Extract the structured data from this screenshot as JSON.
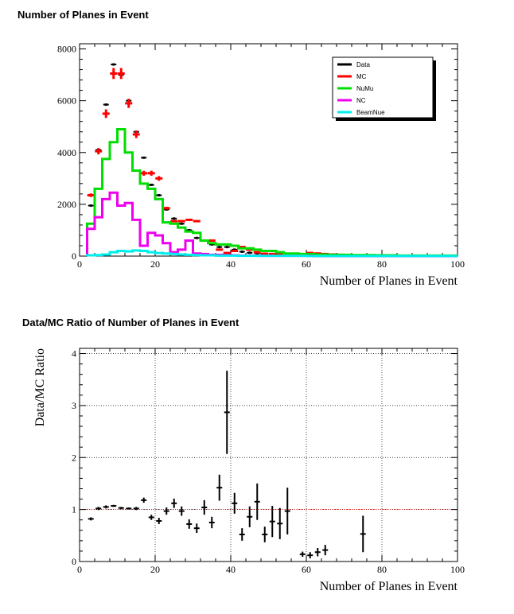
{
  "chart_data": [
    {
      "type": "line",
      "title": "Number of Planes in Event",
      "xlabel": "Number of Planes in Event",
      "ylabel": "",
      "xlim": [
        0,
        100
      ],
      "ylim": [
        0,
        8200
      ],
      "xticks": [
        0,
        20,
        40,
        60,
        80,
        100
      ],
      "yticks": [
        0,
        2000,
        4000,
        6000,
        8000
      ],
      "grid": false,
      "legend_position": "top-right",
      "series": [
        {
          "name": "Data",
          "color": "#000000",
          "style": "points",
          "x": [
            3,
            5,
            7,
            9,
            11,
            13,
            15,
            17,
            19,
            21,
            23,
            25,
            27,
            29,
            31,
            33,
            35,
            37,
            39,
            41,
            43,
            45,
            47,
            49,
            51,
            53,
            55,
            57,
            59,
            61,
            63,
            65,
            67,
            69,
            71,
            73,
            75,
            77,
            79,
            81,
            83,
            85,
            87,
            89,
            91,
            93,
            95,
            97,
            99
          ],
          "y": [
            1950,
            4100,
            5850,
            7400,
            7000,
            6000,
            4800,
            3800,
            2750,
            2350,
            1800,
            1450,
            1250,
            1000,
            700,
            600,
            450,
            350,
            350,
            250,
            170,
            130,
            110,
            90,
            80,
            70,
            60,
            50,
            40,
            30,
            20,
            20,
            15,
            10,
            10,
            5,
            5,
            3,
            3,
            2,
            2,
            2,
            1,
            1,
            1,
            1,
            1,
            1,
            1
          ]
        },
        {
          "name": "MC",
          "color": "#ff0000",
          "style": "points",
          "x": [
            3,
            5,
            7,
            9,
            11,
            13,
            15,
            17,
            19,
            21,
            23,
            25,
            27,
            29,
            31,
            33,
            35,
            37,
            39,
            41,
            43,
            45,
            47,
            49,
            51,
            53,
            55,
            57,
            59,
            61,
            63,
            65,
            67,
            69,
            71,
            73,
            75,
            77,
            79,
            81,
            83,
            85,
            87,
            89,
            91,
            93,
            95,
            97,
            99
          ],
          "y": [
            2350,
            4050,
            5500,
            7050,
            7050,
            5900,
            4700,
            3200,
            3200,
            3000,
            1850,
            1350,
            1350,
            1400,
            1350,
            600,
            600,
            250,
            120,
            200,
            350,
            250,
            150,
            90,
            80,
            80,
            80,
            60,
            50,
            120,
            100,
            80,
            60,
            50,
            40,
            30,
            30,
            20,
            20,
            20,
            10,
            10,
            10,
            10,
            10,
            10,
            5,
            5,
            5
          ]
        },
        {
          "name": "NuMu",
          "color": "#00dd00",
          "style": "step",
          "x": [
            2,
            4,
            6,
            8,
            10,
            12,
            14,
            16,
            18,
            20,
            22,
            24,
            26,
            28,
            30,
            32,
            34,
            36,
            38,
            40,
            42,
            44,
            46,
            48,
            50,
            52,
            54,
            56,
            58,
            60,
            62,
            64,
            66,
            68,
            70,
            72,
            74,
            76,
            78,
            80,
            82,
            84,
            86,
            88,
            90,
            92,
            94,
            96,
            98
          ],
          "y": [
            1250,
            2600,
            3750,
            4400,
            4900,
            4000,
            3300,
            2800,
            2600,
            2200,
            1300,
            1250,
            1100,
            950,
            900,
            600,
            500,
            450,
            450,
            400,
            300,
            300,
            250,
            200,
            200,
            150,
            100,
            100,
            80,
            80,
            60,
            60,
            50,
            50,
            50,
            40,
            40,
            40,
            30,
            30,
            30,
            20,
            20,
            20,
            20,
            20,
            20,
            20,
            20
          ]
        },
        {
          "name": "NC",
          "color": "#ee00ee",
          "style": "step",
          "x": [
            2,
            4,
            6,
            8,
            10,
            12,
            14,
            16,
            18,
            20,
            22,
            24,
            26,
            28,
            30,
            32,
            34,
            36,
            38,
            40,
            42,
            44,
            46,
            48,
            50,
            52,
            54,
            56,
            58,
            60,
            62,
            64,
            66,
            68,
            70,
            72,
            74,
            76,
            78,
            80,
            82,
            84,
            86,
            88,
            90,
            92,
            94,
            96,
            98
          ],
          "y": [
            1050,
            1500,
            2200,
            2450,
            1950,
            2050,
            1400,
            400,
            900,
            800,
            500,
            150,
            250,
            600,
            100,
            80,
            50,
            50,
            40,
            30,
            20,
            20,
            20,
            10,
            10,
            10,
            10,
            10,
            10,
            10,
            0,
            0,
            0,
            0,
            0,
            0,
            0,
            0,
            0,
            0,
            0,
            0,
            0,
            0,
            0,
            0,
            0,
            0,
            0
          ]
        },
        {
          "name": "BeamNue",
          "color": "#00eeee",
          "style": "step",
          "x": [
            2,
            4,
            6,
            8,
            10,
            12,
            14,
            16,
            18,
            20,
            22,
            24,
            26,
            28,
            30,
            32,
            34,
            36,
            38,
            40,
            42,
            44,
            46,
            48,
            50,
            52,
            54,
            56,
            58,
            60,
            62,
            64,
            66,
            68,
            70,
            72,
            74,
            76,
            78,
            80,
            82,
            84,
            86,
            88,
            90,
            92,
            94,
            96,
            98
          ],
          "y": [
            30,
            40,
            60,
            150,
            200,
            180,
            220,
            200,
            150,
            120,
            100,
            80,
            60,
            50,
            40,
            30,
            30,
            20,
            20,
            20,
            10,
            10,
            10,
            10,
            10,
            10,
            10,
            10,
            10,
            5,
            5,
            5,
            5,
            5,
            5,
            5,
            5,
            5,
            5,
            5,
            5,
            5,
            5,
            5,
            5,
            5,
            5,
            5,
            5
          ]
        }
      ]
    },
    {
      "type": "scatter",
      "title": "Data/MC Ratio of Number of Planes in Event",
      "xlabel": "Number of Planes in Event",
      "ylabel": "Data/MC Ratio",
      "xlim": [
        0,
        100
      ],
      "ylim": [
        0,
        4.1
      ],
      "xticks": [
        0,
        20,
        40,
        60,
        80,
        100
      ],
      "yticks": [
        0,
        1,
        2,
        3,
        4
      ],
      "grid": true,
      "reference_line": {
        "y": 1,
        "color": "#ff0000"
      },
      "series": [
        {
          "name": "",
          "color": "#000000",
          "x": [
            3,
            5,
            7,
            9,
            11,
            13,
            15,
            17,
            19,
            21,
            23,
            25,
            27,
            29,
            31,
            33,
            35,
            37,
            39,
            41,
            43,
            45,
            47,
            49,
            51,
            53,
            55,
            59,
            61,
            63,
            65,
            75
          ],
          "y": [
            0.82,
            1.02,
            1.05,
            1.07,
            1.03,
            1.02,
            1.02,
            1.18,
            0.85,
            0.78,
            0.97,
            1.12,
            0.97,
            0.72,
            0.64,
            1.04,
            0.75,
            1.42,
            2.87,
            1.12,
            0.52,
            0.86,
            1.15,
            0.52,
            0.77,
            0.73,
            0.97,
            0.14,
            0.12,
            0.18,
            0.22,
            0.53
          ],
          "err": [
            0.03,
            0.03,
            0.03,
            0.02,
            0.02,
            0.02,
            0.03,
            0.05,
            0.05,
            0.06,
            0.07,
            0.09,
            0.09,
            0.09,
            0.09,
            0.14,
            0.11,
            0.25,
            0.8,
            0.2,
            0.12,
            0.2,
            0.35,
            0.15,
            0.3,
            0.3,
            0.45,
            0.05,
            0.06,
            0.08,
            0.1,
            0.35
          ]
        }
      ]
    }
  ]
}
